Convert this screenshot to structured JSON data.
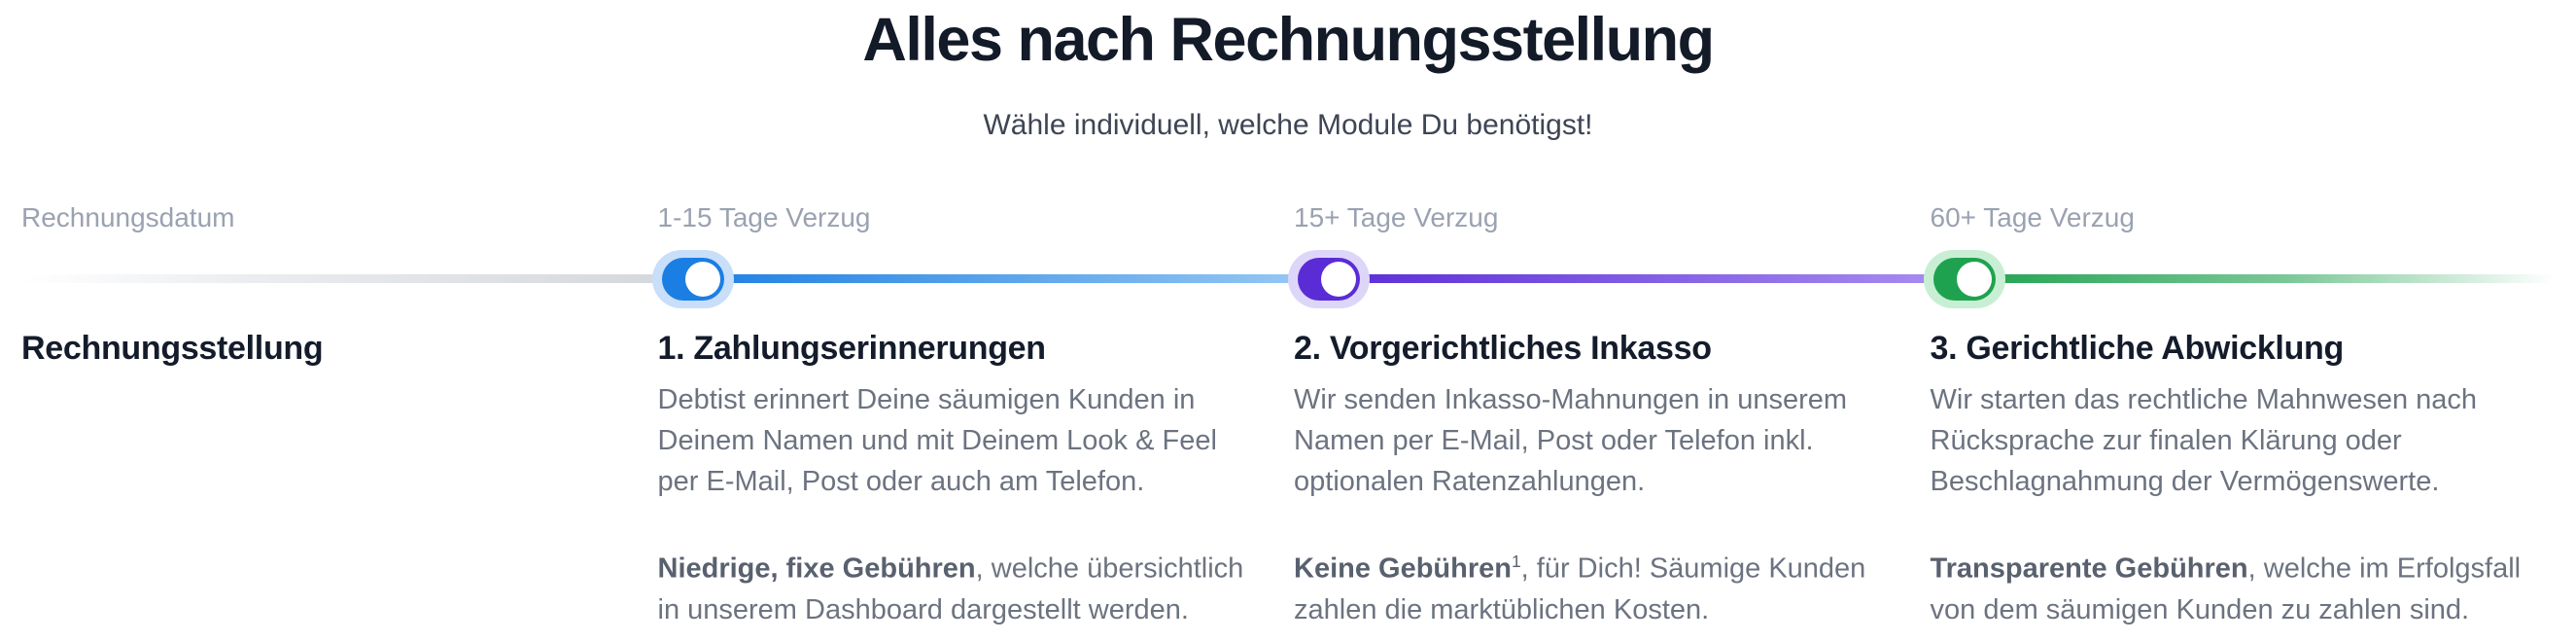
{
  "header": {
    "title": "Alles nach Rechnungsstellung",
    "subtitle": "Wähle individuell, welche Module Du benötigst!"
  },
  "timeline": {
    "stages": [
      {
        "label": "Rechnungsdatum",
        "has_toggle": false
      },
      {
        "label": "1-15 Tage Verzug",
        "has_toggle": true,
        "toggle_on": true,
        "toggle_color": "#1b7ee3",
        "toggle_halo": "#c9def8"
      },
      {
        "label": "15+ Tage Verzug",
        "has_toggle": true,
        "toggle_on": true,
        "toggle_color": "#5a2cd6",
        "toggle_halo": "#ded6f8"
      },
      {
        "label": "60+ Tage Verzug",
        "has_toggle": true,
        "toggle_on": true,
        "toggle_color": "#1fa24f",
        "toggle_halo": "#c8efd4"
      }
    ],
    "line_colors": {
      "gray": "#d3d6dc",
      "blue_start": "#1e80e2",
      "blue_end": "#9acaf5",
      "purple_start": "#5a2cd6",
      "purple_end": "#aa90f2",
      "green": "#1fa24f"
    }
  },
  "columns": [
    {
      "heading": "Rechnungsstellung",
      "body": "",
      "fee_bold": "",
      "fee_sup": "",
      "fee_rest": ""
    },
    {
      "heading": "1. Zahlungserinnerungen",
      "body": "Debtist erinnert Deine säumigen Kunden in Deinem Namen und mit Deinem Look & Feel per E-Mail, Post oder auch am Telefon.",
      "fee_bold": "Niedrige, fixe Gebühren",
      "fee_sup": "",
      "fee_rest": ", welche übersichtlich in unserem Dashboard dargestellt werden."
    },
    {
      "heading": "2. Vorgerichtliches Inkasso",
      "body": "Wir senden Inkasso-Mahnungen in unserem Namen per E-Mail, Post oder Telefon inkl. optionalen Ratenzahlungen.",
      "fee_bold": "Keine Gebühren",
      "fee_sup": "1",
      "fee_rest": ", für Dich! Säumige Kunden zahlen die marktüblichen Kosten."
    },
    {
      "heading": "3. Gerichtliche Abwicklung",
      "body": "Wir starten das rechtliche Mahnwesen nach Rücksprache zur finalen Klärung oder Beschlagnahmung der Vermögenswerte.",
      "fee_bold": "Transparente Gebühren",
      "fee_sup": "",
      "fee_rest": ", welche im Erfolgsfall von dem säumigen Kunden zu zahlen sind."
    }
  ]
}
